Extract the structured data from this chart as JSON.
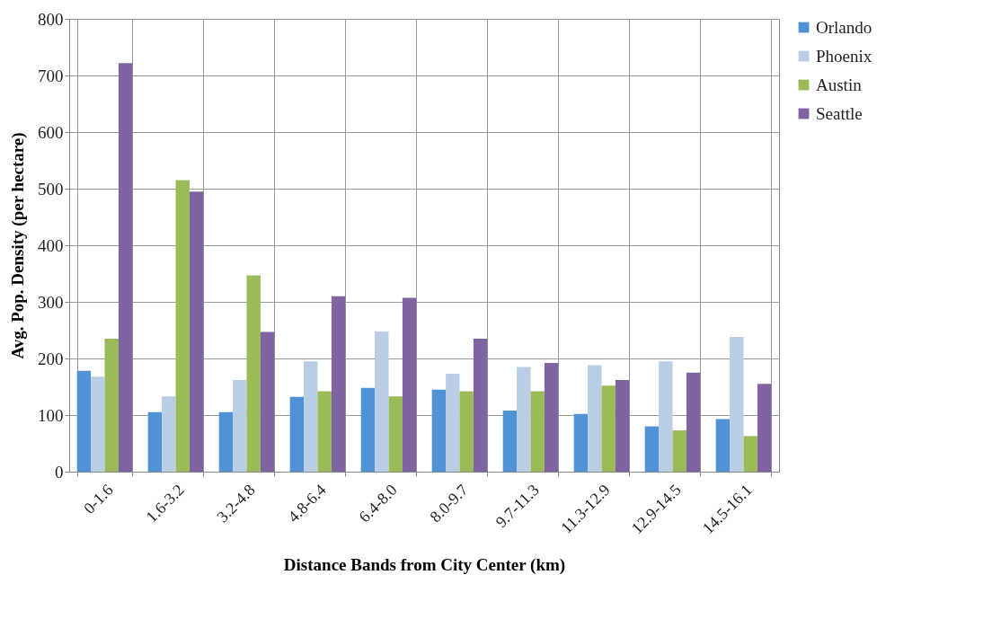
{
  "chart_data": {
    "type": "bar",
    "xlabel": "Distance Bands from City Center (km)",
    "ylabel": "Avg. Pop. Density (per hectare)",
    "categories": [
      "0-1.6",
      "1.6-3.2",
      "3.2-4.8",
      "4.8-6.4",
      "6.4-8.0",
      "8.0-9.7",
      "9.7-11.3",
      "11.3-12.9",
      "12.9-14.5",
      "14.5-16.1"
    ],
    "series": [
      {
        "name": "Orlando",
        "color": "#4f93d6",
        "values": [
          178,
          105,
          105,
          132,
          148,
          145,
          108,
          102,
          80,
          93
        ]
      },
      {
        "name": "Phoenix",
        "color": "#b9cde5",
        "values": [
          168,
          133,
          162,
          195,
          248,
          173,
          185,
          188,
          195,
          238
        ]
      },
      {
        "name": "Austin",
        "color": "#9bbb59",
        "values": [
          235,
          515,
          347,
          142,
          133,
          142,
          142,
          152,
          73,
          63
        ]
      },
      {
        "name": "Seattle",
        "color": "#8064a2",
        "values": [
          722,
          495,
          247,
          310,
          307,
          235,
          192,
          162,
          175,
          155
        ]
      }
    ],
    "ylim": [
      0,
      800
    ],
    "yticks": [
      0,
      100,
      200,
      300,
      400,
      500,
      600,
      700,
      800
    ],
    "grid": true,
    "legend": "right"
  }
}
